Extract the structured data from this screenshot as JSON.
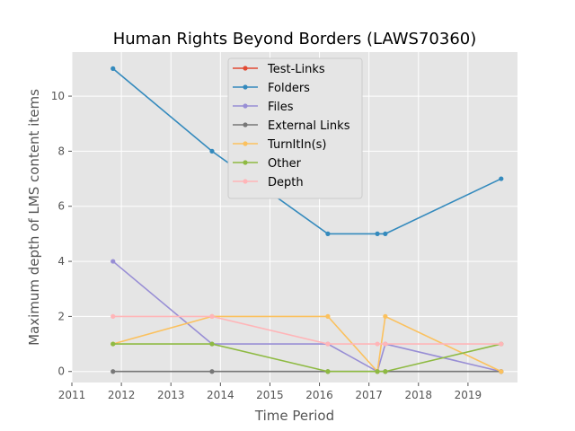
{
  "chart_data": {
    "type": "line",
    "title": "Human Rights Beyond Borders (LAWS70360)",
    "xlabel": "Time Period",
    "ylabel": "Maximum depth of LMS content items",
    "xlim": [
      2011,
      2020
    ],
    "ylim": [
      -0.4,
      11.6
    ],
    "xticks": [
      2011,
      2012,
      2013,
      2014,
      2015,
      2016,
      2017,
      2018,
      2019
    ],
    "yticks": [
      0,
      2,
      4,
      6,
      8,
      10
    ],
    "grid": true,
    "legend_position": "top-center",
    "x": [
      2011.83,
      2013.83,
      2016.17,
      2017.17,
      2017.33,
      2019.67
    ],
    "series": [
      {
        "name": "Test-Links",
        "color": "#E24A33",
        "values": [
          null,
          null,
          null,
          null,
          null,
          null
        ]
      },
      {
        "name": "Folders",
        "color": "#348ABD",
        "values": [
          11,
          8,
          5,
          5,
          5,
          7
        ]
      },
      {
        "name": "Files",
        "color": "#988ED5",
        "values": [
          4,
          1,
          1,
          0,
          1,
          0
        ]
      },
      {
        "name": "External Links",
        "color": "#777777",
        "values": [
          0,
          0,
          0,
          0,
          0,
          0
        ]
      },
      {
        "name": "TurnItIn(s)",
        "color": "#FBC15E",
        "values": [
          1,
          2,
          2,
          0,
          2,
          0
        ]
      },
      {
        "name": "Other",
        "color": "#8EBA42",
        "values": [
          1,
          1,
          0,
          0,
          0,
          1
        ]
      },
      {
        "name": "Depth",
        "color": "#FFB5B8",
        "values": [
          2,
          2,
          1,
          1,
          1,
          1
        ]
      }
    ]
  }
}
